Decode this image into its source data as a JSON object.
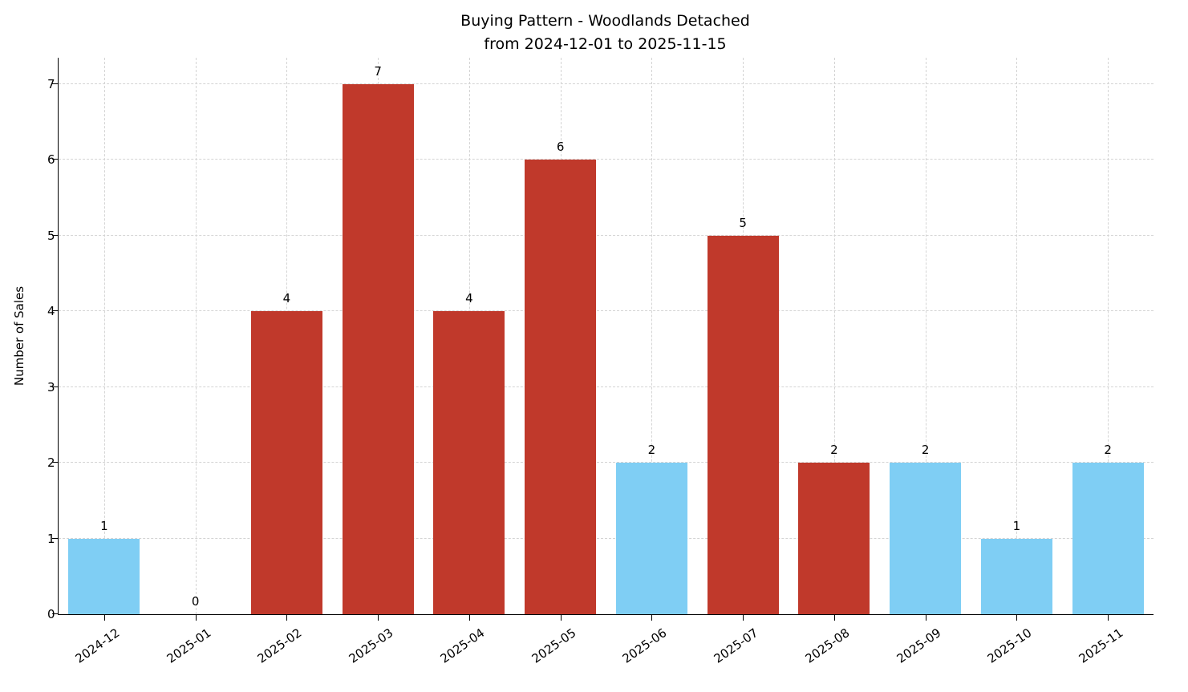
{
  "title": {
    "line1": "Buying Pattern - Woodlands Detached",
    "line2": "from 2024-12-01 to 2025-11-15"
  },
  "chart_data": {
    "type": "bar",
    "title": "Buying Pattern - Woodlands Detached from 2024-12-01 to 2025-11-15",
    "categories": [
      "2024-12",
      "2025-01",
      "2025-02",
      "2025-03",
      "2025-04",
      "2025-05",
      "2025-06",
      "2025-07",
      "2025-08",
      "2025-09",
      "2025-10",
      "2025-11"
    ],
    "values": [
      1,
      0,
      4,
      7,
      4,
      6,
      2,
      5,
      2,
      2,
      1,
      2
    ],
    "bar_colors": [
      "#7fcef4",
      "#7fcef4",
      "#c0392b",
      "#c0392b",
      "#c0392b",
      "#c0392b",
      "#7fcef4",
      "#c0392b",
      "#c0392b",
      "#7fcef4",
      "#7fcef4",
      "#7fcef4"
    ],
    "xlabel": "",
    "ylabel": "Number of Sales",
    "y_ticks": [
      0,
      1,
      2,
      3,
      4,
      5,
      6,
      7
    ],
    "ylim": [
      0,
      7.35
    ],
    "grid": "dashed",
    "grid_color": "#d4d4d4",
    "legend": "none"
  }
}
